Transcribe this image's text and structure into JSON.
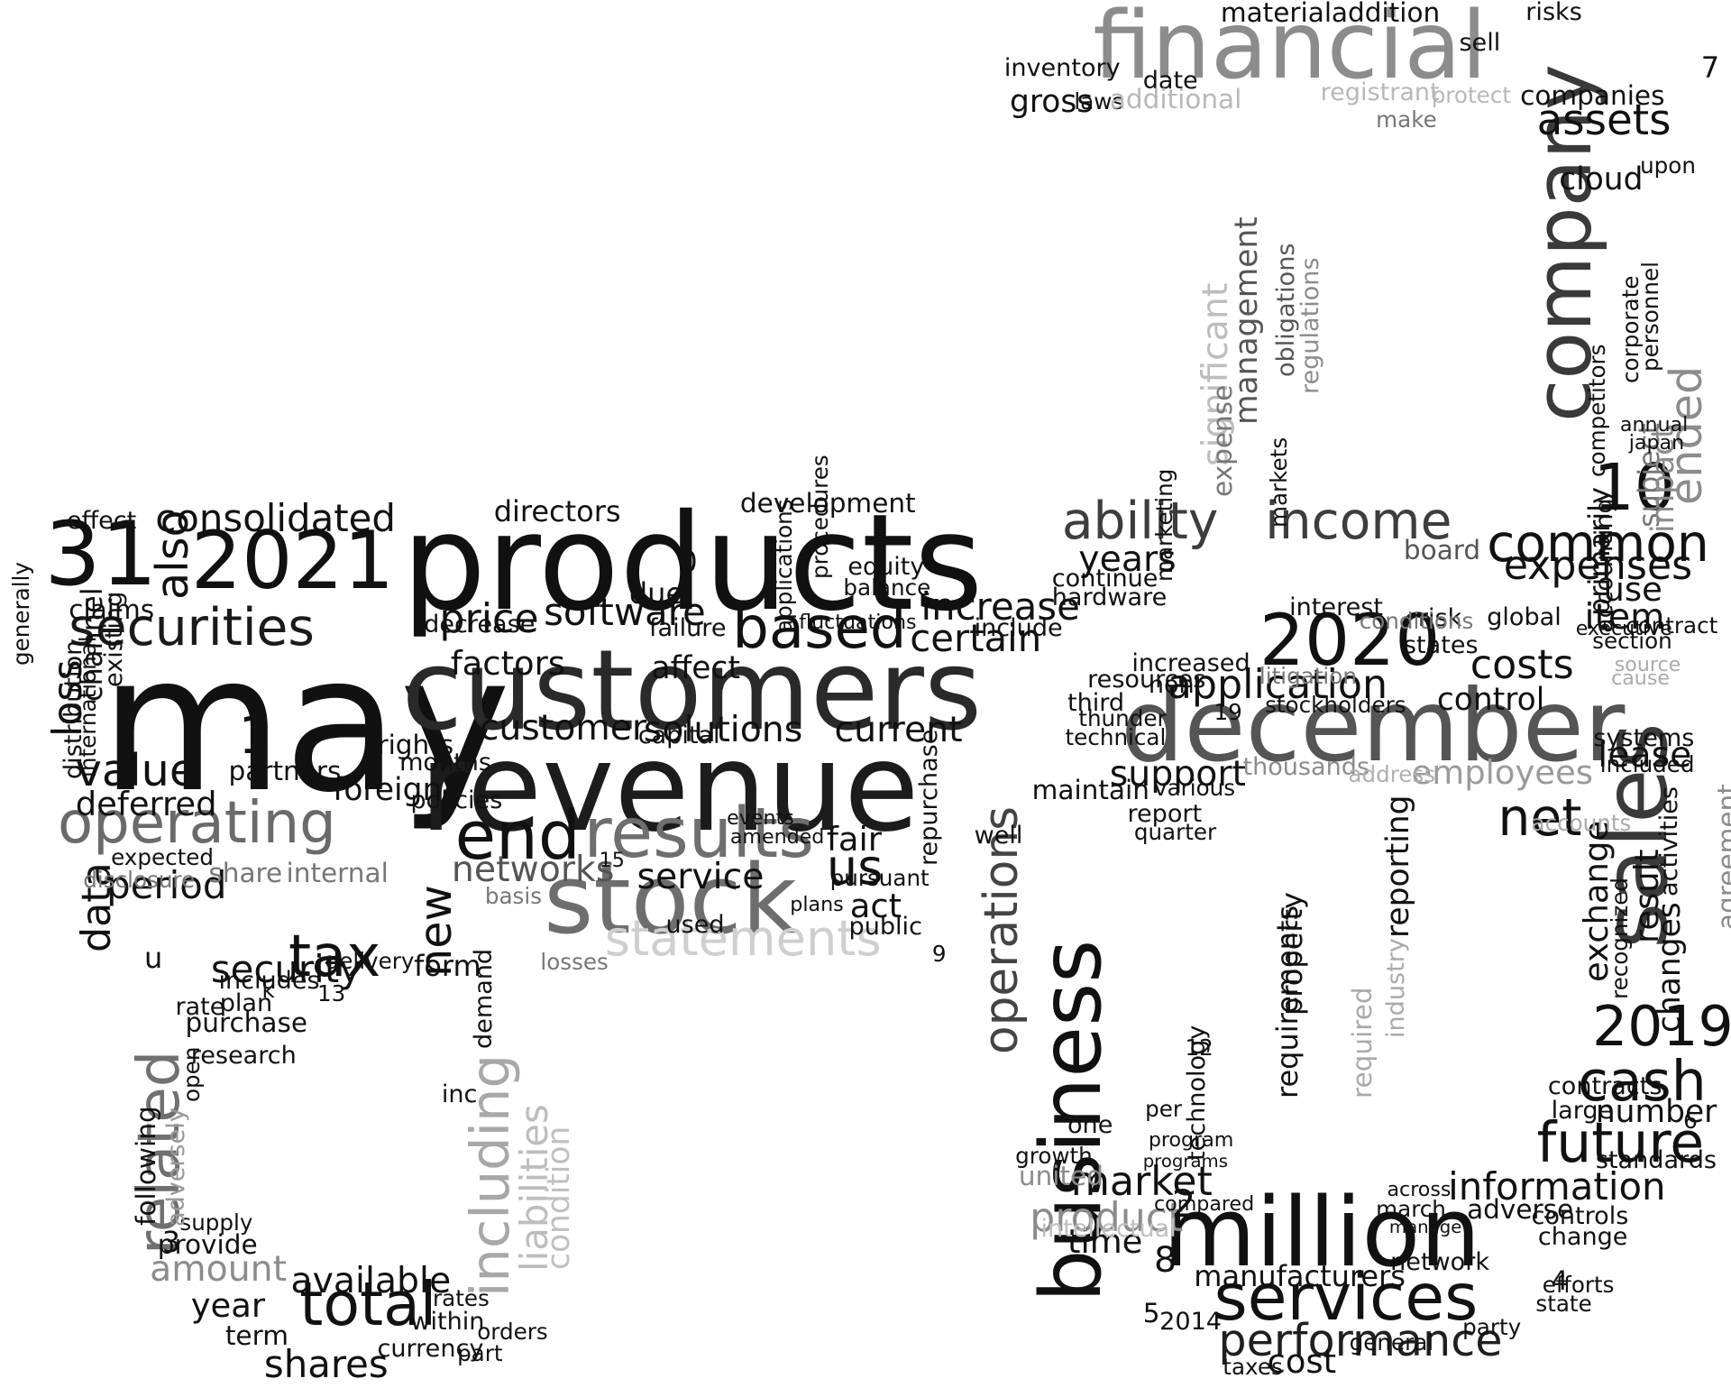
{
  "cloud": {
    "words": [
      {
        "text": "products",
        "c": "#111111"
      },
      {
        "text": "may",
        "c": "#111111"
      },
      {
        "text": "customers",
        "c": "#2a2a2a"
      },
      {
        "text": "revenue",
        "c": "#1c1c1c"
      },
      {
        "text": "financial",
        "c": "#8c8c8c"
      },
      {
        "text": "december",
        "c": "#555555"
      },
      {
        "text": "business",
        "c": "#111111"
      },
      {
        "text": "million",
        "c": "#111111"
      },
      {
        "text": "company",
        "c": "#3a3a3a"
      },
      {
        "text": "sales",
        "c": "#3a3a3a"
      },
      {
        "text": "stock",
        "c": "#6e6e6e"
      },
      {
        "text": "results",
        "c": "#6e6e6e"
      },
      {
        "text": "operating",
        "c": "#6a6a6a"
      },
      {
        "text": "2021",
        "c": "#111111"
      },
      {
        "text": "31",
        "c": "#111111"
      },
      {
        "text": "2020",
        "c": "#111111"
      },
      {
        "text": "income",
        "c": "#3d3d3d"
      },
      {
        "text": "ability",
        "c": "#3d3d3d"
      },
      {
        "text": "end",
        "c": "#111111"
      },
      {
        "text": "total",
        "c": "#111111"
      },
      {
        "text": "services",
        "c": "#111111"
      },
      {
        "text": "securities",
        "c": "#1a1a1a"
      },
      {
        "text": "based",
        "c": "#111111"
      },
      {
        "text": "tax",
        "c": "#111111"
      },
      {
        "text": "statements",
        "c": "#cfcfcf"
      },
      {
        "text": "including",
        "c": "#a8a8a8"
      },
      {
        "text": "related",
        "c": "#707070"
      },
      {
        "text": "cash",
        "c": "#111111"
      },
      {
        "text": "future",
        "c": "#111111"
      },
      {
        "text": "2019",
        "c": "#111111"
      },
      {
        "text": "common",
        "c": "#111111"
      },
      {
        "text": "performance",
        "c": "#1f1f1f"
      },
      {
        "text": "net",
        "c": "#111111"
      },
      {
        "text": "us",
        "c": "#111111"
      },
      {
        "text": "value",
        "c": "#111111"
      },
      {
        "text": "10",
        "c": "#111111"
      },
      {
        "text": "assets",
        "c": "#111111"
      },
      {
        "text": "information",
        "c": "#111111"
      },
      {
        "text": "application",
        "c": "#111111"
      },
      {
        "text": "consolidated",
        "c": "#111111"
      },
      {
        "text": "costs",
        "c": "#111111"
      },
      {
        "text": "market",
        "c": "#111111"
      },
      {
        "text": "product",
        "c": "#8c8c8c"
      },
      {
        "text": "operations",
        "c": "#444444"
      },
      {
        "text": "expenses",
        "c": "#111111"
      },
      {
        "text": "security",
        "c": "#111111"
      },
      {
        "text": "shares",
        "c": "#111111"
      },
      {
        "text": "certain",
        "c": "#111111"
      },
      {
        "text": "increase",
        "c": "#111111"
      },
      {
        "text": "price",
        "c": "#111111"
      },
      {
        "text": "software",
        "c": "#111111"
      },
      {
        "text": "solutions",
        "c": "#111111"
      },
      {
        "text": "current",
        "c": "#111111"
      },
      {
        "text": "customer",
        "c": "#111111"
      },
      {
        "text": "networks",
        "c": "#555555"
      },
      {
        "text": "service",
        "c": "#111111"
      },
      {
        "text": "amount",
        "c": "#8c8c8c"
      },
      {
        "text": "available",
        "c": "#111111"
      },
      {
        "text": "year",
        "c": "#111111"
      },
      {
        "text": "period",
        "c": "#111111"
      },
      {
        "text": "years",
        "c": "#111111"
      },
      {
        "text": "support",
        "c": "#111111"
      },
      {
        "text": "time",
        "c": "#111111"
      },
      {
        "text": "control",
        "c": "#111111"
      },
      {
        "text": "item",
        "c": "#111111"
      },
      {
        "text": "lease",
        "c": "#111111"
      },
      {
        "text": "use",
        "c": "#111111"
      },
      {
        "text": "new",
        "c": "#111111"
      },
      {
        "text": "loss",
        "c": "#111111"
      },
      {
        "text": "also",
        "c": "#111111"
      },
      {
        "text": "data",
        "c": "#111111"
      },
      {
        "text": "deferred",
        "c": "#111111"
      },
      {
        "text": "factors",
        "c": "#111111"
      },
      {
        "text": "foreign",
        "c": "#111111"
      },
      {
        "text": "affect",
        "c": "#111111"
      },
      {
        "text": "act",
        "c": "#111111"
      },
      {
        "text": "fair",
        "c": "#111111"
      },
      {
        "text": "directors",
        "c": "#111111"
      },
      {
        "text": "development",
        "c": "#111111"
      },
      {
        "text": "employees",
        "c": "#9a9a9a"
      },
      {
        "text": "cost",
        "c": "#111111"
      },
      {
        "text": "manufacturers",
        "c": "#111111"
      },
      {
        "text": "network",
        "c": "#111111"
      },
      {
        "text": "adverse",
        "c": "#111111"
      },
      {
        "text": "controls",
        "c": "#111111"
      },
      {
        "text": "change",
        "c": "#111111"
      },
      {
        "text": "number",
        "c": "#111111"
      },
      {
        "text": "contracts",
        "c": "#111111"
      },
      {
        "text": "state",
        "c": "#111111"
      },
      {
        "text": "party",
        "c": "#111111"
      },
      {
        "text": "efforts",
        "c": "#111111"
      },
      {
        "text": "taxes",
        "c": "#111111"
      },
      {
        "text": "general",
        "c": "#111111"
      },
      {
        "text": "interest",
        "c": "#111111"
      },
      {
        "text": "risk",
        "c": "#111111"
      },
      {
        "text": "states",
        "c": "#111111"
      },
      {
        "text": "increased",
        "c": "#111111"
      },
      {
        "text": "non",
        "c": "#111111"
      },
      {
        "text": "resources",
        "c": "#111111"
      },
      {
        "text": "third",
        "c": "#111111"
      },
      {
        "text": "technical",
        "c": "#111111"
      },
      {
        "text": "thunder",
        "c": "#111111"
      },
      {
        "text": "stockholders",
        "c": "#111111"
      },
      {
        "text": "thousands",
        "c": "#8c8c8c"
      },
      {
        "text": "address",
        "c": "#b0b0b0"
      },
      {
        "text": "maintain",
        "c": "#111111"
      },
      {
        "text": "report",
        "c": "#111111"
      },
      {
        "text": "quarter",
        "c": "#111111"
      },
      {
        "text": "continue",
        "c": "#111111"
      },
      {
        "text": "hardware",
        "c": "#111111"
      },
      {
        "text": "board",
        "c": "#555555"
      },
      {
        "text": "systems",
        "c": "#111111"
      },
      {
        "text": "included",
        "c": "#111111"
      },
      {
        "text": "standards",
        "c": "#111111"
      },
      {
        "text": "large",
        "c": "#111111"
      },
      {
        "text": "united",
        "c": "#8c8c8c"
      },
      {
        "text": "intellectual",
        "c": "#c0c0c0"
      },
      {
        "text": "provide",
        "c": "#111111"
      },
      {
        "text": "supply",
        "c": "#111111"
      },
      {
        "text": "term",
        "c": "#111111"
      },
      {
        "text": "purchase",
        "c": "#111111"
      },
      {
        "text": "research",
        "c": "#111111"
      },
      {
        "text": "plan",
        "c": "#111111"
      },
      {
        "text": "includes",
        "c": "#111111"
      },
      {
        "text": "rate",
        "c": "#111111"
      },
      {
        "text": "form",
        "c": "#111111"
      },
      {
        "text": "delivery",
        "c": "#111111"
      },
      {
        "text": "currency",
        "c": "#111111"
      },
      {
        "text": "within",
        "c": "#111111"
      },
      {
        "text": "rates",
        "c": "#111111"
      },
      {
        "text": "orders",
        "c": "#111111"
      },
      {
        "text": "part",
        "c": "#111111"
      },
      {
        "text": "inc",
        "c": "#111111"
      },
      {
        "text": "share",
        "c": "#777777"
      },
      {
        "text": "internal",
        "c": "#777777"
      },
      {
        "text": "expected",
        "c": "#111111"
      },
      {
        "text": "disclosure",
        "c": "#777777"
      },
      {
        "text": "partners",
        "c": "#111111"
      },
      {
        "text": "rights",
        "c": "#111111"
      },
      {
        "text": "basis",
        "c": "#777777"
      },
      {
        "text": "losses",
        "c": "#777777"
      },
      {
        "text": "used",
        "c": "#111111"
      },
      {
        "text": "equity",
        "c": "#111111"
      },
      {
        "text": "balance",
        "c": "#111111"
      },
      {
        "text": "public",
        "c": "#111111"
      },
      {
        "text": "pursuant",
        "c": "#111111"
      },
      {
        "text": "claims",
        "c": "#111111"
      },
      {
        "text": "effect",
        "c": "#111111"
      },
      {
        "text": "gross",
        "c": "#111111"
      },
      {
        "text": "inventory",
        "c": "#111111"
      },
      {
        "text": "material",
        "c": "#111111"
      },
      {
        "text": "addition",
        "c": "#111111"
      },
      {
        "text": "date",
        "c": "#111111"
      },
      {
        "text": "laws",
        "c": "#111111"
      },
      {
        "text": "additional",
        "c": "#b8b8b8"
      },
      {
        "text": "registrant",
        "c": "#b8b8b8"
      },
      {
        "text": "protect",
        "c": "#b8b8b8"
      },
      {
        "text": "make",
        "c": "#777777"
      },
      {
        "text": "sell",
        "c": "#111111"
      },
      {
        "text": "risks",
        "c": "#111111"
      },
      {
        "text": "companies",
        "c": "#111111"
      },
      {
        "text": "cloud",
        "c": "#111111"
      },
      {
        "text": "upon",
        "c": "#111111"
      },
      {
        "text": "contract",
        "c": "#111111"
      },
      {
        "text": "section",
        "c": "#111111"
      },
      {
        "text": "global",
        "c": "#111111"
      },
      {
        "text": "conditions",
        "c": "#777777"
      },
      {
        "text": "litigation",
        "c": "#777777"
      },
      {
        "text": "include",
        "c": "#111111"
      },
      {
        "text": "well",
        "c": "#111111"
      },
      {
        "text": "decrease",
        "c": "#111111"
      },
      {
        "text": "failure",
        "c": "#111111"
      },
      {
        "text": "due",
        "c": "#111111"
      },
      {
        "text": "capital",
        "c": "#111111"
      },
      {
        "text": "months",
        "c": "#111111"
      },
      {
        "text": "policies",
        "c": "#111111"
      },
      {
        "text": "amended",
        "c": "#111111"
      },
      {
        "text": "events",
        "c": "#111111"
      },
      {
        "text": "plans",
        "c": "#111111"
      },
      {
        "text": "various",
        "c": "#111111"
      },
      {
        "text": "per",
        "c": "#111111"
      },
      {
        "text": "program",
        "c": "#111111"
      },
      {
        "text": "programs",
        "c": "#111111"
      },
      {
        "text": "compared",
        "c": "#111111"
      },
      {
        "text": "growth",
        "c": "#111111"
      },
      {
        "text": "one",
        "c": "#111111"
      },
      {
        "text": "march",
        "c": "#111111"
      },
      {
        "text": "across",
        "c": "#111111"
      },
      {
        "text": "manage",
        "c": "#111111"
      },
      {
        "text": "respectively",
        "c": "#111111"
      },
      {
        "text": "agreement",
        "c": "#8c8c8c"
      },
      {
        "text": "significant",
        "c": "#bdbdbd"
      },
      {
        "text": "management",
        "c": "#555555"
      },
      {
        "text": "expense",
        "c": "#777777"
      },
      {
        "text": "obligations",
        "c": "#555555"
      },
      {
        "text": "markets",
        "c": "#111111"
      },
      {
        "text": "regulations",
        "c": "#8c8c8c"
      },
      {
        "text": "primarily",
        "c": "#111111"
      },
      {
        "text": "accounting",
        "c": "#111111"
      },
      {
        "text": "subject",
        "c": "#777777"
      },
      {
        "text": "impact",
        "c": "#8c8c8c"
      },
      {
        "text": "ended",
        "c": "#8c8c8c"
      },
      {
        "text": "corporate",
        "c": "#111111"
      },
      {
        "text": "personnel",
        "c": "#111111"
      },
      {
        "text": "competitors",
        "c": "#111111"
      },
      {
        "text": "exchange",
        "c": "#111111"
      },
      {
        "text": "recognized",
        "c": "#111111"
      },
      {
        "text": "result",
        "c": "#111111"
      },
      {
        "text": "changes",
        "c": "#111111"
      },
      {
        "text": "activities",
        "c": "#111111"
      },
      {
        "text": "requirements",
        "c": "#111111"
      },
      {
        "text": "property",
        "c": "#111111"
      },
      {
        "text": "required",
        "c": "#aaaaaa"
      },
      {
        "text": "industry",
        "c": "#aaaaaa"
      },
      {
        "text": "reporting",
        "c": "#111111"
      },
      {
        "text": "technology",
        "c": "#111111"
      },
      {
        "text": "liabilities",
        "c": "#bdbdbd"
      },
      {
        "text": "condition",
        "c": "#c0c0c0"
      },
      {
        "text": "adversely",
        "c": "#9a9a9a"
      },
      {
        "text": "following",
        "c": "#111111"
      },
      {
        "text": "channel",
        "c": "#111111"
      },
      {
        "text": "existing",
        "c": "#111111"
      },
      {
        "text": "international",
        "c": "#111111"
      },
      {
        "text": "distribution",
        "c": "#111111"
      },
      {
        "text": "generally",
        "c": "#111111"
      },
      {
        "text": "marketing",
        "c": "#111111"
      },
      {
        "text": "repurchase",
        "c": "#111111"
      },
      {
        "text": "demand",
        "c": "#111111"
      },
      {
        "text": "open",
        "c": "#111111"
      },
      {
        "text": "2014",
        "c": "#111111"
      },
      {
        "text": "accounts",
        "c": "#aaaaaa"
      },
      {
        "text": "cause",
        "c": "#aaaaaa"
      },
      {
        "text": "source",
        "c": "#aaaaaa"
      },
      {
        "text": "annual",
        "c": "#111111"
      },
      {
        "text": "japan",
        "c": "#111111"
      },
      {
        "text": "executive",
        "c": "#111111"
      },
      {
        "text": "fluctuations",
        "c": "#111111"
      },
      {
        "text": "procedures",
        "c": "#111111"
      },
      {
        "text": "applications",
        "c": "#111111"
      },
      {
        "text": "0",
        "c": "#111111"
      },
      {
        "text": "1",
        "c": "#111111"
      },
      {
        "text": "2",
        "c": "#111111"
      },
      {
        "text": "3",
        "c": "#111111"
      },
      {
        "text": "4",
        "c": "#111111"
      },
      {
        "text": "5",
        "c": "#111111"
      },
      {
        "text": "6",
        "c": "#111111"
      },
      {
        "text": "7",
        "c": "#111111"
      },
      {
        "text": "8",
        "c": "#111111"
      },
      {
        "text": "9",
        "c": "#111111"
      },
      {
        "text": "12",
        "c": "#111111"
      },
      {
        "text": "13",
        "c": "#111111"
      },
      {
        "text": "15",
        "c": "#111111"
      },
      {
        "text": "19",
        "c": "#111111"
      },
      {
        "text": "k",
        "c": "#111111"
      },
      {
        "text": "u",
        "c": "#111111"
      }
    ]
  }
}
